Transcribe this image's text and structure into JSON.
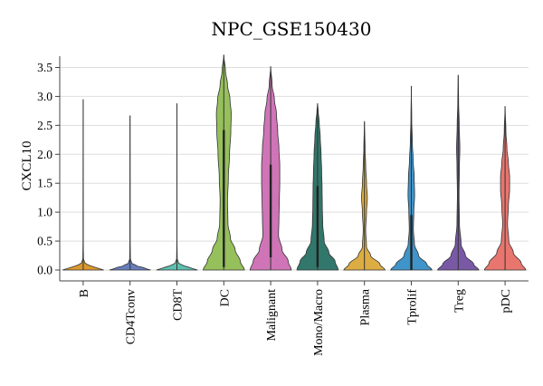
{
  "chart_data": {
    "type": "violin",
    "title": "NPC_GSE150430",
    "xlabel": "",
    "ylabel": "CXCL10",
    "ylim": [
      0.0,
      3.9
    ],
    "yticks": [
      "0.0",
      "0.5",
      "1.0",
      "1.5",
      "2.0",
      "2.5",
      "3.0",
      "3.5"
    ],
    "ytick_values": [
      0,
      0.5,
      1.0,
      1.5,
      2.0,
      2.5,
      3.0,
      3.5
    ],
    "grid": true,
    "legend": "none",
    "categories": [
      "B",
      "CD4Tconv",
      "CD8T",
      "DC",
      "Malignant",
      "Mono/Macro",
      "Plasma",
      "Tprolif",
      "Treg",
      "pDC"
    ],
    "series": [
      {
        "category": "B",
        "color": "#d9901a",
        "max": 2.95,
        "q1": 0,
        "q3": 0,
        "profile": [
          [
            0.0,
            1.0
          ],
          [
            0.03,
            0.75
          ],
          [
            0.07,
            0.35
          ],
          [
            0.12,
            0.08
          ],
          [
            0.2,
            0.015
          ],
          [
            0.5,
            0.005
          ],
          [
            2.95,
            0.0
          ]
        ]
      },
      {
        "category": "CD4Tconv",
        "color": "#5a72b5",
        "max": 2.67,
        "q1": 0,
        "q3": 0,
        "profile": [
          [
            0.0,
            1.0
          ],
          [
            0.03,
            0.75
          ],
          [
            0.07,
            0.35
          ],
          [
            0.12,
            0.08
          ],
          [
            0.2,
            0.015
          ],
          [
            0.5,
            0.005
          ],
          [
            2.67,
            0.0
          ]
        ]
      },
      {
        "category": "CD8T",
        "color": "#4fbaa8",
        "max": 2.88,
        "q1": 0,
        "q3": 0,
        "profile": [
          [
            0.0,
            1.0
          ],
          [
            0.03,
            0.75
          ],
          [
            0.07,
            0.35
          ],
          [
            0.12,
            0.08
          ],
          [
            0.2,
            0.015
          ],
          [
            0.5,
            0.005
          ],
          [
            2.88,
            0.0
          ]
        ]
      },
      {
        "category": "DC",
        "color": "#8dbb4d",
        "max": 3.72,
        "q1": 0.05,
        "q3": 2.42,
        "profile": [
          [
            0.0,
            1.0
          ],
          [
            0.15,
            0.8
          ],
          [
            0.35,
            0.55
          ],
          [
            0.55,
            0.32
          ],
          [
            0.8,
            0.2
          ],
          [
            1.2,
            0.18
          ],
          [
            1.6,
            0.22
          ],
          [
            2.0,
            0.28
          ],
          [
            2.4,
            0.34
          ],
          [
            2.7,
            0.36
          ],
          [
            2.95,
            0.3
          ],
          [
            3.2,
            0.18
          ],
          [
            3.45,
            0.08
          ],
          [
            3.72,
            0.0
          ]
        ]
      },
      {
        "category": "Malignant",
        "color": "#cb69b1",
        "max": 3.52,
        "q1": 0.22,
        "q3": 1.82,
        "profile": [
          [
            0.0,
            1.0
          ],
          [
            0.15,
            0.85
          ],
          [
            0.35,
            0.55
          ],
          [
            0.6,
            0.38
          ],
          [
            0.9,
            0.4
          ],
          [
            1.2,
            0.42
          ],
          [
            1.5,
            0.44
          ],
          [
            1.8,
            0.44
          ],
          [
            2.1,
            0.4
          ],
          [
            2.4,
            0.34
          ],
          [
            2.7,
            0.28
          ],
          [
            2.95,
            0.18
          ],
          [
            3.2,
            0.07
          ],
          [
            3.52,
            0.0
          ]
        ]
      },
      {
        "category": "Mono/Macro",
        "color": "#216b5e",
        "max": 2.88,
        "q1": 0.05,
        "q3": 1.45,
        "profile": [
          [
            0.0,
            1.0
          ],
          [
            0.15,
            0.85
          ],
          [
            0.3,
            0.55
          ],
          [
            0.5,
            0.32
          ],
          [
            0.8,
            0.25
          ],
          [
            1.1,
            0.23
          ],
          [
            1.4,
            0.22
          ],
          [
            1.7,
            0.2
          ],
          [
            2.0,
            0.17
          ],
          [
            2.3,
            0.13
          ],
          [
            2.55,
            0.08
          ],
          [
            2.75,
            0.03
          ],
          [
            2.88,
            0.0
          ]
        ]
      },
      {
        "category": "Plasma",
        "color": "#d9a632",
        "max": 2.57,
        "q1": 0,
        "q3": 0,
        "profile": [
          [
            0.0,
            1.0
          ],
          [
            0.1,
            0.75
          ],
          [
            0.25,
            0.3
          ],
          [
            0.4,
            0.1
          ],
          [
            0.7,
            0.06
          ],
          [
            1.0,
            0.1
          ],
          [
            1.25,
            0.14
          ],
          [
            1.5,
            0.1
          ],
          [
            1.8,
            0.06
          ],
          [
            2.1,
            0.03
          ],
          [
            2.57,
            0.0
          ]
        ]
      },
      {
        "category": "Tprolif",
        "color": "#2f8bc4",
        "max": 3.18,
        "q1": 0,
        "q3": 0.95,
        "profile": [
          [
            0.0,
            1.0
          ],
          [
            0.1,
            0.75
          ],
          [
            0.25,
            0.35
          ],
          [
            0.45,
            0.15
          ],
          [
            0.7,
            0.1
          ],
          [
            1.0,
            0.12
          ],
          [
            1.3,
            0.16
          ],
          [
            1.6,
            0.14
          ],
          [
            1.9,
            0.09
          ],
          [
            2.2,
            0.05
          ],
          [
            2.6,
            0.02
          ],
          [
            3.18,
            0.0
          ]
        ]
      },
      {
        "category": "Treg",
        "color": "#6e4b9e",
        "max": 3.37,
        "q1": 0,
        "q3": 0,
        "profile": [
          [
            0.0,
            1.0
          ],
          [
            0.1,
            0.75
          ],
          [
            0.25,
            0.35
          ],
          [
            0.45,
            0.14
          ],
          [
            0.8,
            0.06
          ],
          [
            1.3,
            0.04
          ],
          [
            1.8,
            0.06
          ],
          [
            2.1,
            0.08
          ],
          [
            2.5,
            0.05
          ],
          [
            2.9,
            0.02
          ],
          [
            3.37,
            0.0
          ]
        ]
      },
      {
        "category": "pDC",
        "color": "#e66a63",
        "max": 2.83,
        "q1": 0,
        "q3": 0,
        "profile": [
          [
            0.0,
            1.0
          ],
          [
            0.12,
            0.78
          ],
          [
            0.3,
            0.4
          ],
          [
            0.5,
            0.18
          ],
          [
            0.8,
            0.12
          ],
          [
            1.1,
            0.16
          ],
          [
            1.4,
            0.22
          ],
          [
            1.6,
            0.22
          ],
          [
            1.85,
            0.16
          ],
          [
            2.1,
            0.09
          ],
          [
            2.4,
            0.04
          ],
          [
            2.83,
            0.0
          ]
        ]
      }
    ]
  }
}
